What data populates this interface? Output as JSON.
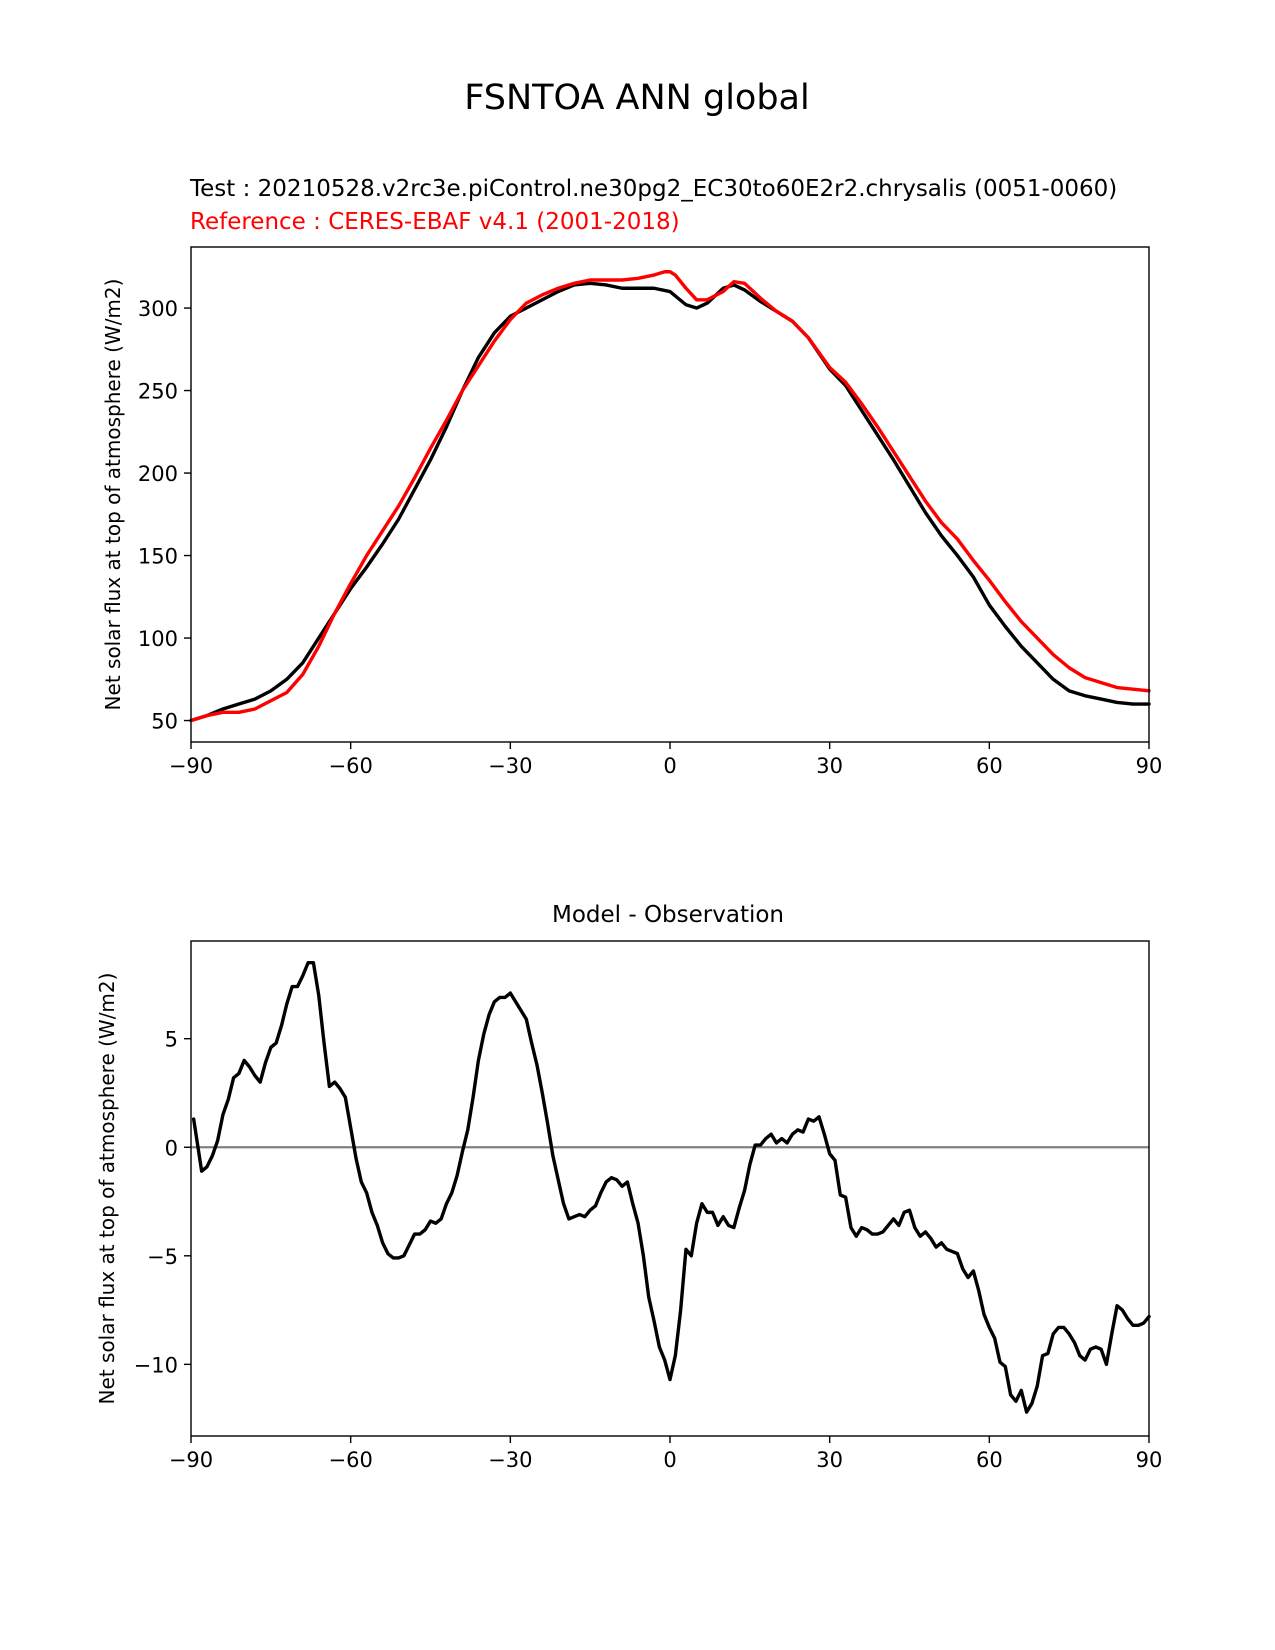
{
  "suptitle": "FSNTOA ANN global",
  "chart_data": [
    {
      "type": "line",
      "title_test": "Test : 20210528.v2rc3e.piControl.ne30pg2_EC30to60E2r2.chrysalis (0051-0060)",
      "title_reference": "Reference : CERES-EBAF v4.1 (2001-2018)",
      "xlabel": "",
      "ylabel": "Net solar flux at top of atmosphere (W/m2)",
      "xlim": [
        -90,
        90
      ],
      "ylim": [
        37,
        337
      ],
      "xticks": [
        -90,
        -60,
        -30,
        0,
        30,
        60,
        90
      ],
      "xtick_labels": [
        "−90",
        "−60",
        "−30",
        "0",
        "30",
        "60",
        "90"
      ],
      "yticks": [
        50,
        100,
        150,
        200,
        250,
        300
      ],
      "ytick_labels": [
        "50",
        "100",
        "150",
        "200",
        "250",
        "300"
      ],
      "grid": false,
      "series": [
        {
          "color": "#000000",
          "x": [
            -90,
            -87,
            -84,
            -81,
            -78,
            -75,
            -72,
            -69,
            -66,
            -63,
            -60,
            -57,
            -54,
            -51,
            -48,
            -45,
            -42,
            -39,
            -36,
            -33,
            -30,
            -27,
            -24,
            -21,
            -18,
            -15,
            -12,
            -9,
            -6,
            -3,
            0,
            3,
            5,
            7,
            10,
            12,
            14,
            17,
            20,
            23,
            26,
            30,
            33,
            36,
            39,
            42,
            45,
            48,
            51,
            54,
            57,
            60,
            63,
            66,
            69,
            72,
            75,
            78,
            81,
            84,
            87,
            90
          ],
          "y": [
            50,
            53,
            57,
            60,
            63,
            68,
            75,
            85,
            100,
            115,
            130,
            143,
            157,
            172,
            190,
            208,
            228,
            250,
            270,
            285,
            295,
            300,
            305,
            310,
            314,
            315,
            314,
            312,
            312,
            312,
            310,
            302,
            300,
            303,
            312,
            314,
            311,
            304,
            298,
            292,
            282,
            263,
            253,
            238,
            223,
            208,
            192,
            176,
            162,
            150,
            137,
            120,
            107,
            95,
            85,
            75,
            68,
            65,
            63,
            61,
            60,
            60
          ]
        },
        {
          "color": "#ff0000",
          "x": [
            -90,
            -87,
            -84,
            -81,
            -78,
            -75,
            -72,
            -69,
            -66,
            -63,
            -60,
            -57,
            -54,
            -51,
            -48,
            -45,
            -42,
            -39,
            -36,
            -33,
            -30,
            -27,
            -24,
            -21,
            -18,
            -15,
            -12,
            -9,
            -6,
            -3,
            -1,
            0,
            1,
            3,
            5,
            7,
            10,
            12,
            14,
            17,
            20,
            23,
            26,
            30,
            33,
            36,
            39,
            42,
            45,
            48,
            51,
            54,
            57,
            60,
            63,
            66,
            69,
            72,
            75,
            78,
            81,
            84,
            87,
            90
          ],
          "y": [
            50,
            53,
            55,
            55,
            57,
            62,
            67,
            78,
            95,
            115,
            133,
            150,
            165,
            180,
            197,
            215,
            232,
            250,
            265,
            280,
            293,
            303,
            308,
            312,
            315,
            317,
            317,
            317,
            318,
            320,
            322,
            322,
            320,
            312,
            305,
            305,
            310,
            316,
            315,
            306,
            298,
            292,
            282,
            264,
            255,
            242,
            228,
            213,
            198,
            183,
            170,
            160,
            147,
            135,
            122,
            110,
            100,
            90,
            82,
            76,
            73,
            70,
            69,
            68
          ]
        }
      ]
    },
    {
      "type": "line",
      "title": "Model - Observation",
      "xlabel": "",
      "ylabel": "Net solar flux at top of atmosphere (W/m2)",
      "xlim": [
        -90,
        90
      ],
      "ylim": [
        -13.3,
        9.5
      ],
      "xticks": [
        -90,
        -60,
        -30,
        0,
        30,
        60,
        90
      ],
      "xtick_labels": [
        "−90",
        "−60",
        "−30",
        "0",
        "30",
        "60",
        "90"
      ],
      "yticks": [
        -10,
        -5,
        0,
        5
      ],
      "ytick_labels": [
        "−10",
        "−5",
        "0",
        "5"
      ],
      "grid": false,
      "zero_line_color": "#808080",
      "series": [
        {
          "color": "#000000",
          "x": [
            -89.5,
            -89,
            -88,
            -87,
            -86,
            -85,
            -84,
            -83,
            -82,
            -81,
            -80,
            -79,
            -78,
            -77,
            -76,
            -75,
            -74,
            -73,
            -72,
            -71,
            -70,
            -69,
            -68,
            -67,
            -66,
            -65,
            -64,
            -63,
            -62,
            -61,
            -60,
            -59,
            -58,
            -57,
            -56,
            -55,
            -54,
            -53,
            -52,
            -51,
            -50,
            -49,
            -48,
            -47,
            -46,
            -45,
            -44,
            -43,
            -42,
            -41,
            -40,
            -39,
            -38,
            -37,
            -36,
            -35,
            -34,
            -33,
            -32,
            -31,
            -30,
            -29,
            -28,
            -27,
            -26,
            -25,
            -24,
            -23,
            -22,
            -21,
            -20,
            -19,
            -18,
            -17,
            -16,
            -15,
            -14,
            -13,
            -12,
            -11,
            -10,
            -9,
            -8,
            -7,
            -6,
            -5,
            -4,
            -3,
            -2,
            -1,
            0,
            1,
            2,
            3,
            4,
            5,
            6,
            7,
            8,
            9,
            10,
            11,
            12,
            13,
            14,
            15,
            16,
            17,
            18,
            19,
            20,
            21,
            22,
            23,
            24,
            25,
            26,
            27,
            28,
            29,
            30,
            31,
            32,
            33,
            34,
            35,
            36,
            37,
            38,
            39,
            40,
            41,
            42,
            43,
            44,
            45,
            46,
            47,
            48,
            49,
            50,
            51,
            52,
            53,
            54,
            55,
            56,
            57,
            58,
            59,
            60,
            61,
            62,
            63,
            64,
            65,
            66,
            67,
            68,
            69,
            70,
            71,
            72,
            73,
            74,
            75,
            76,
            77,
            78,
            79,
            80,
            81,
            82,
            83,
            84,
            85,
            86,
            87,
            88,
            89,
            90
          ],
          "y": [
            1.3,
            0.5,
            -1.1,
            -0.9,
            -0.4,
            0.3,
            1.5,
            2.2,
            3.2,
            3.4,
            4.0,
            3.7,
            3.3,
            3.0,
            3.9,
            4.6,
            4.8,
            5.6,
            6.6,
            7.4,
            7.4,
            7.9,
            8.5,
            8.5,
            7.0,
            4.8,
            2.8,
            3.0,
            2.7,
            2.3,
            0.9,
            -0.5,
            -1.6,
            -2.1,
            -3.0,
            -3.6,
            -4.4,
            -4.9,
            -5.1,
            -5.1,
            -5.0,
            -4.5,
            -4.0,
            -4.0,
            -3.8,
            -3.4,
            -3.5,
            -3.3,
            -2.6,
            -2.1,
            -1.3,
            -0.2,
            0.8,
            2.3,
            4.0,
            5.2,
            6.1,
            6.7,
            6.9,
            6.9,
            7.1,
            6.7,
            6.3,
            5.9,
            4.8,
            3.8,
            2.5,
            1.1,
            -0.4,
            -1.5,
            -2.6,
            -3.3,
            -3.2,
            -3.1,
            -3.2,
            -2.9,
            -2.7,
            -2.1,
            -1.6,
            -1.4,
            -1.5,
            -1.8,
            -1.6,
            -2.6,
            -3.5,
            -5.0,
            -6.9,
            -8.0,
            -9.2,
            -9.8,
            -10.7,
            -9.6,
            -7.5,
            -4.7,
            -5.0,
            -3.5,
            -2.6,
            -3.0,
            -3.0,
            -3.6,
            -3.2,
            -3.6,
            -3.7,
            -2.8,
            -2.0,
            -0.8,
            0.1,
            0.1,
            0.4,
            0.6,
            0.2,
            0.4,
            0.2,
            0.6,
            0.8,
            0.7,
            1.3,
            1.2,
            1.4,
            0.6,
            -0.3,
            -0.6,
            -2.2,
            -2.3,
            -3.7,
            -4.1,
            -3.7,
            -3.8,
            -4.0,
            -4.0,
            -3.9,
            -3.6,
            -3.3,
            -3.6,
            -3.0,
            -2.9,
            -3.7,
            -4.1,
            -3.9,
            -4.2,
            -4.6,
            -4.4,
            -4.7,
            -4.8,
            -4.9,
            -5.6,
            -6.0,
            -5.7,
            -6.6,
            -7.7,
            -8.3,
            -8.8,
            -9.9,
            -10.1,
            -11.4,
            -11.7,
            -11.2,
            -12.2,
            -11.8,
            -11.0,
            -9.6,
            -9.5,
            -8.6,
            -8.3,
            -8.3,
            -8.6,
            -9.0,
            -9.6,
            -9.8,
            -9.3,
            -9.2,
            -9.3,
            -10.0,
            -8.6,
            -7.3,
            -7.5,
            -7.9,
            -8.2,
            -8.2,
            -8.1,
            -7.8
          ]
        }
      ]
    }
  ]
}
